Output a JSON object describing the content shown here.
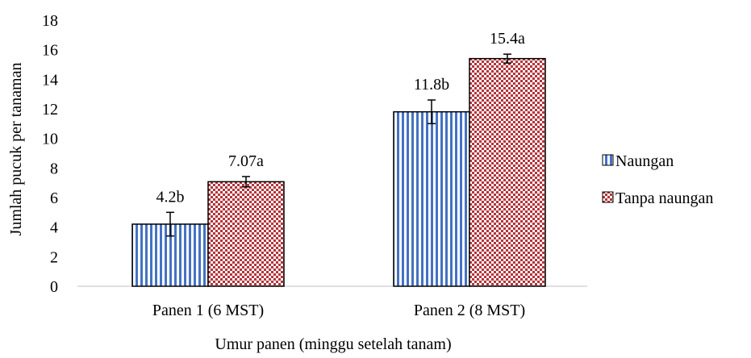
{
  "chart_data": {
    "type": "bar",
    "title": "",
    "xlabel": "Umur panen (minggu setelah tanam)",
    "ylabel": "Jumlah pucuk per tanaman",
    "ylim": [
      0,
      18
    ],
    "ytick_step": 2,
    "yticks": [
      "0",
      "2",
      "4",
      "6",
      "8",
      "10",
      "12",
      "14",
      "16",
      "18"
    ],
    "categories": [
      "Panen 1 (6 MST)",
      "Panen 2 (8 MST)"
    ],
    "grid": false,
    "legend_position": "right",
    "series": [
      {
        "name": "Naungan",
        "pattern": "vertical-stripes",
        "color": "#4472c4",
        "values": [
          4.2,
          11.8
        ],
        "errors": [
          0.8,
          0.8
        ],
        "labels": [
          "4.2b",
          "11.8b"
        ]
      },
      {
        "name": "Tanpa naungan",
        "pattern": "checkered",
        "color": "#b4343a",
        "values": [
          7.07,
          15.4
        ],
        "errors": [
          0.35,
          0.3
        ],
        "labels": [
          "7.07a",
          "15.4a"
        ]
      }
    ]
  }
}
